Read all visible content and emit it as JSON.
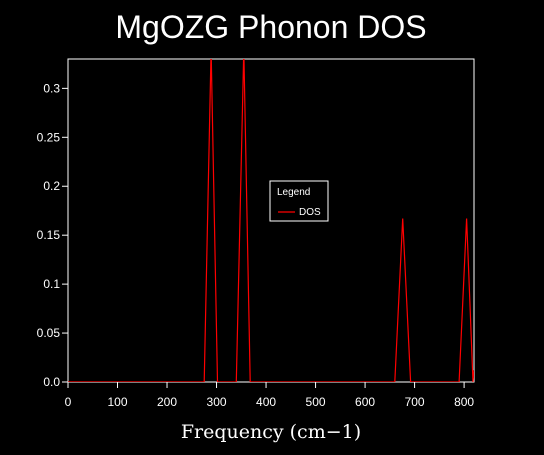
{
  "chart_data": {
    "type": "line",
    "title": "MgOZG Phonon DOS",
    "xlabel": "Frequency (cm−1)",
    "ylabel": "",
    "xlim": [
      0,
      820
    ],
    "ylim": [
      0,
      0.33
    ],
    "x_ticks": [
      {
        "value": 0,
        "label": "0"
      },
      {
        "value": 100,
        "label": "100"
      },
      {
        "value": 200,
        "label": "200"
      },
      {
        "value": 300,
        "label": "300"
      },
      {
        "value": 400,
        "label": "400"
      },
      {
        "value": 500,
        "label": "500"
      },
      {
        "value": 600,
        "label": "600"
      },
      {
        "value": 700,
        "label": "700"
      },
      {
        "value": 800,
        "label": "800"
      }
    ],
    "y_ticks": [
      {
        "value": 0.0,
        "label": "0.0"
      },
      {
        "value": 0.05,
        "label": "0.05"
      },
      {
        "value": 0.1,
        "label": "0.1"
      },
      {
        "value": 0.15,
        "label": "0.15"
      },
      {
        "value": 0.2,
        "label": "0.2"
      },
      {
        "value": 0.25,
        "label": "0.25"
      },
      {
        "value": 0.3,
        "label": "0.3"
      }
    ],
    "grid": false,
    "legend": {
      "title": "Legend",
      "placement": "center-right"
    },
    "series": [
      {
        "name": "DOS",
        "color": "#ff0000",
        "x": [
          0,
          275,
          289,
          302,
          340,
          355,
          368,
          660,
          676,
          692,
          790,
          805,
          818,
          820
        ],
        "y": [
          0,
          0,
          0.34,
          0,
          0,
          0.34,
          0,
          0,
          0.167,
          0,
          0,
          0.167,
          0,
          0.012
        ]
      }
    ]
  }
}
